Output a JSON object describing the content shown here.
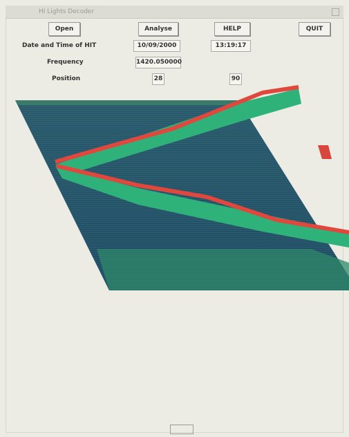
{
  "window": {
    "title": "HI Lights Decoder"
  },
  "toolbar": {
    "buttons": [
      "Open",
      "Analyse",
      "HELP",
      "QUIT"
    ]
  },
  "fields": {
    "date_label": "Date and Time of HIT",
    "date": "10/09/2000",
    "time": "13:19:17",
    "frequency_label": "Frequency",
    "frequency": "1420.050000",
    "position_label": "Position",
    "position_x": "28",
    "position_y": "90"
  }
}
